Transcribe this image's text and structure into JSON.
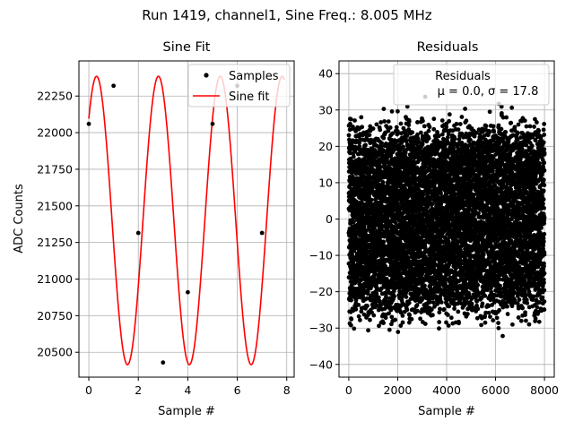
{
  "figure": {
    "suptitle": "Run 1419, channel1, Sine Freq.: 8.005 MHz"
  },
  "chart_data": [
    {
      "type": "line",
      "title": "Sine Fit",
      "xlabel": "Sample #",
      "ylabel": "ADC Counts",
      "xlim": [
        -0.4,
        8.3
      ],
      "ylim": [
        20330,
        22490
      ],
      "xticks": [
        0,
        2,
        4,
        6,
        8
      ],
      "yticks": [
        20500,
        20750,
        21000,
        21250,
        21500,
        21750,
        22000,
        22250
      ],
      "grid": true,
      "legend": {
        "placement": "upper-right",
        "entries": [
          "Samples",
          "Sine fit"
        ]
      },
      "series": [
        {
          "name": "Samples",
          "kind": "scatter",
          "color": "#000000",
          "x": [
            0,
            1,
            2,
            3,
            4,
            5,
            6,
            7
          ],
          "y": [
            22060,
            22320,
            21315,
            20430,
            20910,
            22060,
            22320,
            21315
          ]
        },
        {
          "name": "Sine fit",
          "kind": "line",
          "color": "#ff0000",
          "model": {
            "offset": 21400,
            "amplitude": 985,
            "cycles_per_sample": 0.4,
            "phase_rad": 0.784
          },
          "x_range": [
            0,
            7.9
          ]
        }
      ]
    },
    {
      "type": "scatter",
      "title": "Residuals",
      "xlabel": "Sample #",
      "ylabel": "",
      "xlim": [
        -400,
        8400
      ],
      "ylim": [
        -43.5,
        43.5
      ],
      "xticks": [
        0,
        2000,
        4000,
        6000,
        8000
      ],
      "yticks": [
        -40,
        -30,
        -20,
        -10,
        0,
        10,
        20,
        30,
        40
      ],
      "grid": true,
      "legend": {
        "placement": "upper-right",
        "entries": [
          "Residuals",
          "μ = 0.0, σ = 17.8"
        ]
      },
      "series": [
        {
          "name": "Residuals",
          "color": "#000000",
          "n_points": 8000,
          "x_range": [
            0,
            8000
          ],
          "y_range": [
            -42,
            37
          ],
          "mean": 0.0,
          "std": 17.8
        }
      ]
    }
  ]
}
